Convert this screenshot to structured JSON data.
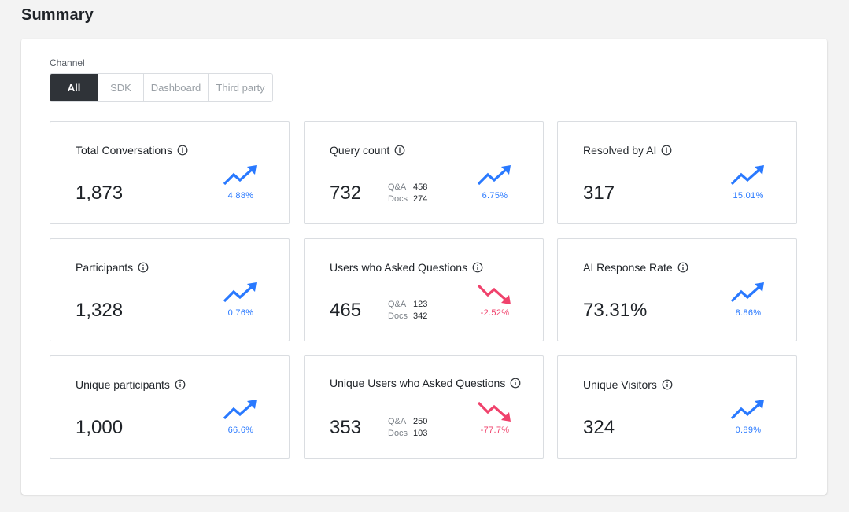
{
  "page": {
    "title": "Summary"
  },
  "channel": {
    "label": "Channel",
    "options": [
      "All",
      "SDK",
      "Dashboard",
      "Third party"
    ],
    "selected": "All"
  },
  "colors": {
    "up": "#2979ff",
    "down": "#f0426c",
    "active_tab": "#2f3338"
  },
  "cards": [
    {
      "title": "Total Conversations",
      "value": "1,873",
      "trend": "up",
      "change": "4.88%",
      "breakdown": null
    },
    {
      "title": "Query count",
      "value": "732",
      "trend": "up",
      "change": "6.75%",
      "breakdown": [
        {
          "label": "Q&A",
          "value": "458"
        },
        {
          "label": "Docs",
          "value": "274"
        }
      ]
    },
    {
      "title": "Resolved by AI",
      "value": "317",
      "trend": "up",
      "change": "15.01%",
      "breakdown": null
    },
    {
      "title": "Participants",
      "value": "1,328",
      "trend": "up",
      "change": "0.76%",
      "breakdown": null
    },
    {
      "title": "Users who Asked Questions",
      "value": "465",
      "trend": "down",
      "change": "-2.52%",
      "breakdown": [
        {
          "label": "Q&A",
          "value": "123"
        },
        {
          "label": "Docs",
          "value": "342"
        }
      ]
    },
    {
      "title": "AI Response Rate",
      "value": "73.31%",
      "trend": "up",
      "change": "8.86%",
      "breakdown": null
    },
    {
      "title": "Unique participants",
      "value": "1,000",
      "trend": "up",
      "change": "66.6%",
      "breakdown": null
    },
    {
      "title": "Unique Users who Asked Questions",
      "value": "353",
      "trend": "down",
      "change": "-77.7%",
      "breakdown": [
        {
          "label": "Q&A",
          "value": "250"
        },
        {
          "label": "Docs",
          "value": "103"
        }
      ]
    },
    {
      "title": "Unique Visitors",
      "value": "324",
      "trend": "up",
      "change": "0.89%",
      "breakdown": null
    }
  ]
}
